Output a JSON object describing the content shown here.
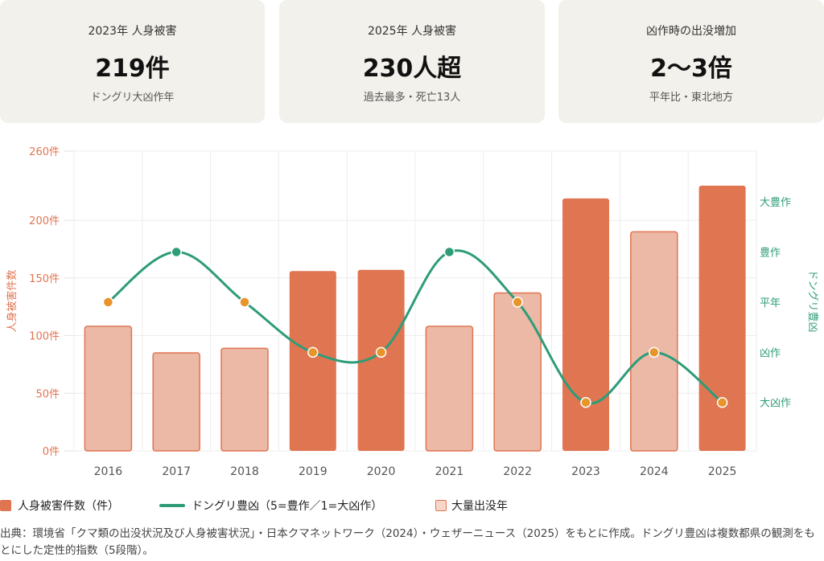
{
  "cards": [
    {
      "label": "2023年 人身被害",
      "value": "219件",
      "sub": "ドングリ大凶作年"
    },
    {
      "label": "2025年 人身被害",
      "value": "230人超",
      "sub": "過去最多・死亡13人"
    },
    {
      "label": "凶作時の出没増加",
      "value": "2〜3倍",
      "sub": "平年比・東北地方"
    }
  ],
  "chart_data": {
    "type": "bar",
    "categories": [
      "2016",
      "2017",
      "2018",
      "2019",
      "2020",
      "2021",
      "2022",
      "2023",
      "2024",
      "2025"
    ],
    "series": [
      {
        "name": "人身被害件数（件）",
        "type": "bar",
        "axis": "left",
        "values": [
          108,
          85,
          89,
          156,
          157,
          108,
          137,
          219,
          190,
          230
        ]
      },
      {
        "name": "ドングリ豊凶（5=豊作／1=大凶作）",
        "type": "line",
        "axis": "right",
        "values": [
          3,
          4,
          3,
          2,
          2,
          4,
          3,
          1,
          2,
          1
        ]
      }
    ],
    "mass_outbreak_years": [
      "2019",
      "2020",
      "2023",
      "2025"
    ],
    "ylabel": "人身被害件数",
    "y2label": "ドングリ豊凶",
    "ylim": [
      0,
      260
    ],
    "y_ticks": [
      "0件",
      "50件",
      "100件",
      "150件",
      "200件",
      "260件"
    ],
    "y2_ticks": [
      "大凶作",
      "凶作",
      "平年",
      "豊作",
      "大豊作"
    ],
    "grid": true,
    "legend_position": "bottom-left",
    "colors": {
      "bar_solid": "#e07552",
      "bar_light": "#ebb9a6",
      "bar_light_stroke": "#e07552",
      "line": "#2e9c78",
      "point_green": "#2e9c78",
      "point_orange": "#e8942a",
      "left_axis": "#e07552",
      "right_axis": "#2e9c78"
    }
  },
  "legend": [
    {
      "label": "人身被害件数（件）"
    },
    {
      "label": "ドングリ豊凶（5=豊作／1=大凶作）"
    },
    {
      "label": "大量出没年"
    }
  ],
  "source": "出典：環境省「クマ類の出没状況及び人身被害状況」・日本クマネットワーク（2024）・ウェザーニュース（2025）をもとに作成。ドングリ豊凶は複数都県の観測をもとにした定性的指数（5段階）。"
}
